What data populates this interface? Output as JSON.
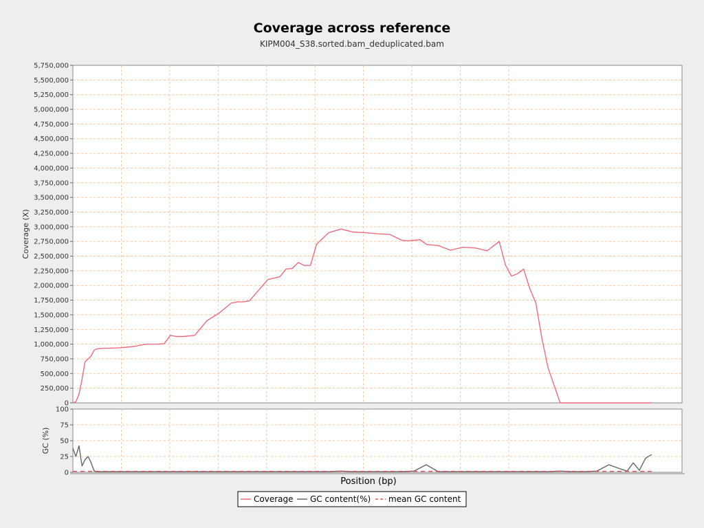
{
  "title": "Coverage across reference",
  "subtitle": "KIPM004_S38.sorted.bam_deduplicated.bam",
  "chart_data": [
    {
      "type": "line",
      "title": "Coverage across reference",
      "subtitle": "KIPM004_S38.sorted.bam_deduplicated.bam",
      "xlabel": "Position (bp)",
      "ylabel": "Coverage (X)",
      "xlim": [
        0,
        1.0
      ],
      "ylim": [
        0,
        5750000
      ],
      "yticks": [
        "0",
        "250,000",
        "500,000",
        "750,000",
        "1,000,000",
        "1,250,000",
        "1,500,000",
        "1,750,000",
        "2,000,000",
        "2,250,000",
        "2,500,000",
        "2,750,000",
        "3,000,000",
        "3,250,000",
        "3,500,000",
        "3,750,000",
        "4,000,000",
        "4,250,000",
        "4,500,000",
        "4,750,000",
        "5,000,000",
        "5,250,000",
        "5,500,000",
        "5,750,000"
      ],
      "grid": true,
      "x": [
        0.0,
        0.005,
        0.01,
        0.015,
        0.02,
        0.025,
        0.03,
        0.035,
        0.04,
        0.05,
        0.06,
        0.08,
        0.1,
        0.12,
        0.13,
        0.14,
        0.15,
        0.16,
        0.17,
        0.18,
        0.2,
        0.22,
        0.24,
        0.26,
        0.27,
        0.28,
        0.29,
        0.3,
        0.32,
        0.34,
        0.35,
        0.36,
        0.37,
        0.38,
        0.39,
        0.4,
        0.42,
        0.44,
        0.46,
        0.48,
        0.49,
        0.5,
        0.52,
        0.54,
        0.55,
        0.56,
        0.57,
        0.58,
        0.6,
        0.62,
        0.64,
        0.66,
        0.68,
        0.7,
        0.71,
        0.72,
        0.73,
        0.74,
        0.75,
        0.76,
        0.77,
        0.78,
        0.79,
        0.8,
        0.81,
        0.82,
        0.83,
        0.84,
        0.85,
        0.86,
        0.87,
        0.88,
        0.89,
        0.9,
        0.905,
        0.91,
        0.915,
        0.92,
        0.925,
        0.93,
        0.935,
        0.94,
        0.945,
        0.95
      ],
      "series": [
        {
          "name": "Coverage",
          "color": "#ef6b7e",
          "values": [
            0,
            20000,
            150000,
            400000,
            700000,
            750000,
            800000,
            900000,
            920000,
            930000,
            930000,
            940000,
            960000,
            1000000,
            1000000,
            1000000,
            1010000,
            1150000,
            1130000,
            1130000,
            1150000,
            1400000,
            1530000,
            1700000,
            1720000,
            1720000,
            1740000,
            1860000,
            2100000,
            2150000,
            2280000,
            2290000,
            2390000,
            2340000,
            2340000,
            2700000,
            2900000,
            2960000,
            2910000,
            2900000,
            2890000,
            2880000,
            2870000,
            2770000,
            2760000,
            2770000,
            2780000,
            2700000,
            2680000,
            2600000,
            2650000,
            2640000,
            2590000,
            2750000,
            2350000,
            2160000,
            2200000,
            2280000,
            1950000,
            1700000,
            1100000,
            600000,
            300000,
            0,
            0,
            0,
            0,
            0,
            0,
            0,
            0,
            0,
            0,
            0,
            0,
            0,
            0,
            0,
            0,
            0,
            0,
            0,
            0,
            0
          ]
        }
      ]
    },
    {
      "type": "line",
      "xlabel": "Position (bp)",
      "ylabel": "GC (%)",
      "xlim": [
        0,
        1.0
      ],
      "ylim": [
        0,
        100
      ],
      "yticks": [
        "0",
        "25",
        "50",
        "75",
        "100"
      ],
      "grid": true,
      "x": [
        0.0,
        0.005,
        0.01,
        0.015,
        0.02,
        0.025,
        0.03,
        0.035,
        0.04,
        0.05,
        0.06,
        0.08,
        0.1,
        0.12,
        0.14,
        0.16,
        0.18,
        0.2,
        0.22,
        0.24,
        0.26,
        0.28,
        0.3,
        0.32,
        0.34,
        0.36,
        0.38,
        0.4,
        0.42,
        0.44,
        0.46,
        0.48,
        0.5,
        0.52,
        0.54,
        0.56,
        0.58,
        0.6,
        0.62,
        0.64,
        0.66,
        0.68,
        0.7,
        0.72,
        0.74,
        0.76,
        0.78,
        0.8,
        0.82,
        0.84,
        0.86,
        0.88,
        0.9,
        0.91,
        0.92,
        0.93,
        0.94,
        0.95
      ],
      "series": [
        {
          "name": "GC content(%)",
          "color": "#666666",
          "values": [
            38,
            25,
            42,
            10,
            20,
            25,
            15,
            2,
            1,
            1,
            1,
            1,
            1,
            1,
            1,
            1,
            1,
            1,
            1,
            1,
            1,
            1,
            1,
            1,
            1,
            1,
            1,
            1,
            1,
            2,
            1,
            1,
            1,
            1,
            1,
            2,
            12,
            1,
            1,
            1,
            1,
            1,
            1,
            1,
            1,
            1,
            1,
            2,
            1,
            1,
            2,
            12,
            5,
            2,
            15,
            3,
            22,
            28
          ]
        },
        {
          "name": "mean GC content",
          "color": "#e8505b",
          "dashed": true,
          "values": [
            1.5,
            1.5,
            1.5,
            1.5,
            1.5,
            1.5,
            1.5,
            1.5,
            1.5,
            1.5,
            1.5,
            1.5,
            1.5,
            1.5,
            1.5,
            1.5,
            1.5,
            1.5,
            1.5,
            1.5,
            1.5,
            1.5,
            1.5,
            1.5,
            1.5,
            1.5,
            1.5,
            1.5,
            1.5,
            1.5,
            1.5,
            1.5,
            1.5,
            1.5,
            1.5,
            1.5,
            1.5,
            1.5,
            1.5,
            1.5,
            1.5,
            1.5,
            1.5,
            1.5,
            1.5,
            1.5,
            1.5,
            1.5,
            1.5,
            1.5,
            1.5,
            1.5,
            1.5,
            1.5,
            1.5,
            1.5,
            1.5,
            1.5
          ]
        }
      ]
    }
  ],
  "legend": {
    "placement": "bottom-center",
    "items": [
      {
        "label": "Coverage",
        "color": "#ef6b7e",
        "dashed": false
      },
      {
        "label": "GC content(%)",
        "color": "#666666",
        "dashed": false
      },
      {
        "label": "mean GC content",
        "color": "#e8505b",
        "dashed": true
      }
    ]
  }
}
